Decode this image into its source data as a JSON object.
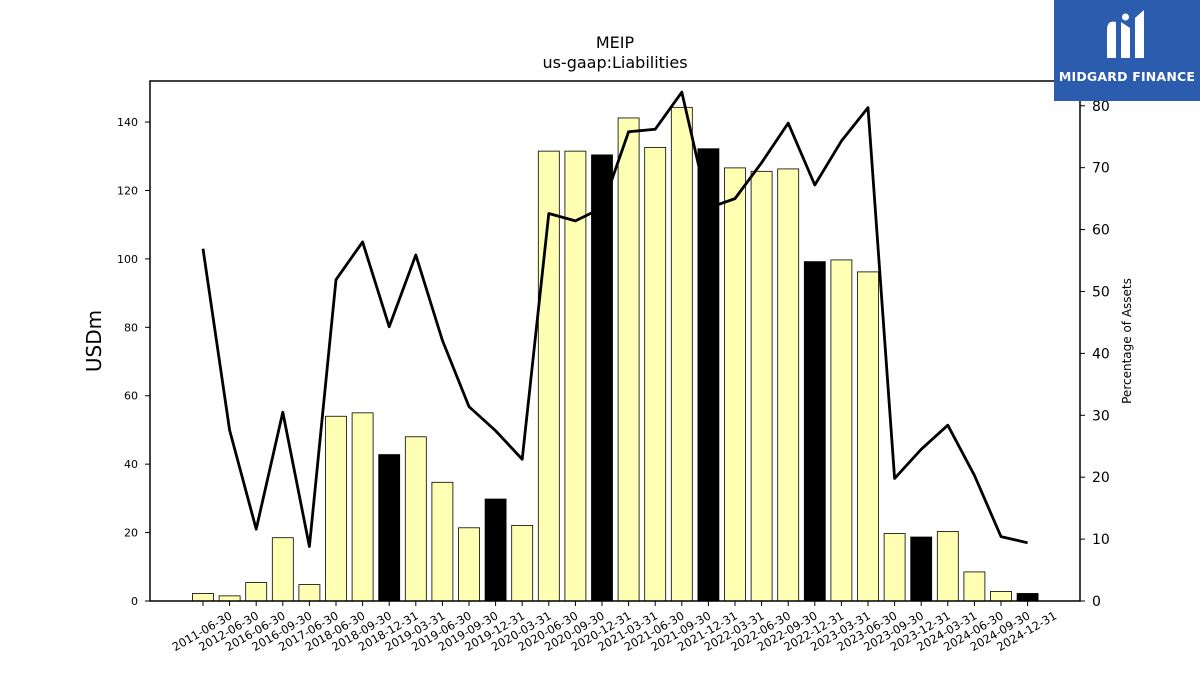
{
  "brand": {
    "name": "MIDGARD FINANCE",
    "color": "#2b5cad",
    "icon": "midgard-logo-icon"
  },
  "chart_data": {
    "type": "bar",
    "title": "MEIP",
    "subtitle": "us-gaap:Liabilities",
    "ylabel": "USDm",
    "y2label": "Percentage of Assets",
    "ylim": [
      0,
      152
    ],
    "y2lim": [
      0,
      84
    ],
    "yticks": [
      0,
      20,
      40,
      60,
      80,
      100,
      120,
      140
    ],
    "y2ticks": [
      0,
      10,
      20,
      30,
      40,
      50,
      60,
      70,
      80
    ],
    "grid": false,
    "colors": {
      "annual": "#000000",
      "quarterly": "#ffffb3",
      "line": "#000000"
    },
    "categories": [
      "2011-06-30",
      "2012-06-30",
      "2016-06-30",
      "2016-09-30",
      "2017-06-30",
      "2018-06-30",
      "2018-09-30",
      "2018-12-31",
      "2019-03-31",
      "2019-06-30",
      "2019-09-30",
      "2019-12-31",
      "2020-03-31",
      "2020-06-30",
      "2020-09-30",
      "2020-12-31",
      "2021-03-31",
      "2021-06-30",
      "2021-09-30",
      "2021-12-31",
      "2022-03-31",
      "2022-06-30",
      "2022-09-30",
      "2022-12-31",
      "2023-03-31",
      "2023-06-30",
      "2023-09-30",
      "2023-12-31",
      "2024-03-31",
      "2024-06-30",
      "2024-09-30",
      "2024-12-31"
    ],
    "series": [
      {
        "type": "bar",
        "axis": "left",
        "values": [
          2.2,
          1.5,
          5.4,
          18.5,
          4.8,
          54.0,
          55.0,
          42.8,
          48.0,
          34.7,
          21.4,
          29.8,
          22.1,
          131.5,
          131.5,
          130.4,
          141.2,
          132.6,
          144.3,
          132.2,
          126.6,
          125.6,
          126.3,
          99.2,
          99.7,
          96.2,
          19.7,
          18.7,
          20.3,
          8.5,
          2.8,
          2.2
        ],
        "is_annual": [
          false,
          false,
          false,
          false,
          false,
          false,
          false,
          true,
          false,
          false,
          false,
          true,
          false,
          false,
          false,
          true,
          false,
          false,
          false,
          true,
          false,
          false,
          false,
          true,
          false,
          false,
          false,
          true,
          false,
          false,
          false,
          true
        ]
      },
      {
        "type": "line",
        "axis": "right",
        "values": [
          56.9,
          27.6,
          11.6,
          30.5,
          8.8,
          51.9,
          58.0,
          44.3,
          55.9,
          42.1,
          31.4,
          27.5,
          22.9,
          62.6,
          61.4,
          63.5,
          75.8,
          76.2,
          82.2,
          63.5,
          65.0,
          70.8,
          77.2,
          67.2,
          74.3,
          79.7,
          19.8,
          24.5,
          28.4,
          20.3,
          10.4,
          9.4
        ]
      }
    ]
  }
}
